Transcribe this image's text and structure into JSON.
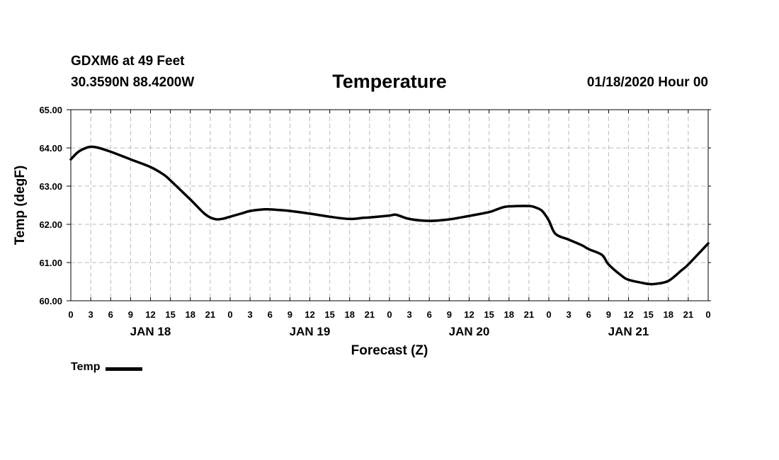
{
  "header": {
    "station": "GDXM6 at 49 Feet",
    "coords": "30.3590N 88.4200W",
    "title": "Temperature",
    "run": "01/18/2020 Hour 00"
  },
  "legend": {
    "label": "Temp"
  },
  "chart_data": {
    "type": "line",
    "title": "Temperature",
    "xlabel": "Forecast (Z)",
    "ylabel": "Temp (degF)",
    "ylim": [
      60,
      65
    ],
    "yticks": [
      "60.00",
      "61.00",
      "62.00",
      "63.00",
      "64.00",
      "65.00"
    ],
    "xlim": [
      0,
      96
    ],
    "x_step_hours": 3,
    "xtick_labels": [
      "0",
      "3",
      "6",
      "9",
      "12",
      "15",
      "18",
      "21",
      "0",
      "3",
      "6",
      "9",
      "12",
      "15",
      "18",
      "21",
      "0",
      "3",
      "6",
      "9",
      "12",
      "15",
      "18",
      "21",
      "0",
      "3",
      "6",
      "9",
      "12",
      "15",
      "18",
      "21",
      "0"
    ],
    "day_labels": [
      {
        "hour": 12,
        "label": "JAN 18"
      },
      {
        "hour": 36,
        "label": "JAN 19"
      },
      {
        "hour": 60,
        "label": "JAN 20"
      },
      {
        "hour": 84,
        "label": "JAN 21"
      }
    ],
    "grid": true,
    "series": [
      {
        "name": "Temp",
        "x": [
          0,
          1,
          2,
          3,
          4,
          6,
          9,
          12,
          14,
          15,
          18,
          20,
          21,
          22,
          23,
          24,
          26,
          27,
          29,
          30,
          33,
          36,
          39,
          42,
          44,
          45,
          48,
          49,
          51,
          54,
          57,
          60,
          63,
          64,
          65,
          66,
          69,
          70,
          71,
          72,
          73,
          75,
          77,
          78,
          80,
          81,
          83,
          84,
          86,
          87,
          88,
          90,
          92,
          93,
          96
        ],
        "values": [
          63.7,
          63.88,
          63.98,
          64.03,
          64.01,
          63.9,
          63.7,
          63.5,
          63.3,
          63.15,
          62.65,
          62.3,
          62.18,
          62.13,
          62.15,
          62.2,
          62.3,
          62.35,
          62.39,
          62.39,
          62.35,
          62.28,
          62.2,
          62.14,
          62.17,
          62.18,
          62.23,
          62.25,
          62.14,
          62.09,
          62.13,
          62.22,
          62.32,
          62.38,
          62.44,
          62.47,
          62.48,
          62.44,
          62.35,
          62.1,
          61.75,
          61.6,
          61.45,
          61.35,
          61.2,
          60.95,
          60.65,
          60.55,
          60.47,
          60.44,
          60.44,
          60.52,
          60.8,
          60.95,
          61.5
        ]
      }
    ]
  }
}
